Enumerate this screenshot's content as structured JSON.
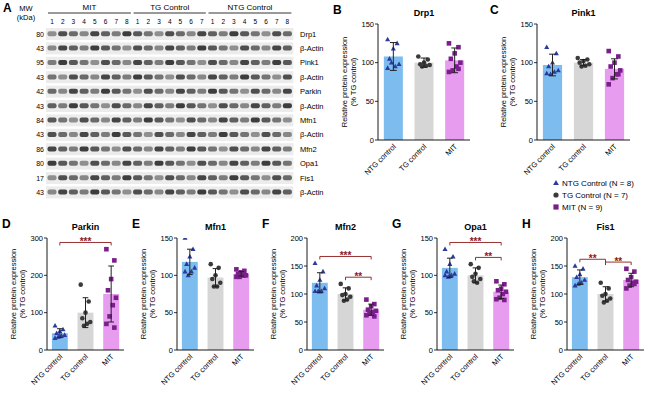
{
  "blot": {
    "panel": "A",
    "mw_label": [
      "MW",
      "(kDa)"
    ],
    "groups": [
      {
        "label": "MIT",
        "lanes": [
          1,
          2,
          3,
          4,
          5,
          6,
          7,
          8
        ]
      },
      {
        "label": "TG Control",
        "lanes": [
          1,
          2,
          3,
          4,
          5,
          6,
          7
        ]
      },
      {
        "label": "NTG Control",
        "lanes": [
          1,
          2,
          3,
          4,
          5,
          6,
          7,
          8
        ]
      }
    ],
    "rows": [
      {
        "mw": 80,
        "label": "Drp1"
      },
      {
        "mw": 43,
        "label": "β-Actin"
      },
      {
        "mw": 95,
        "label": "Pink1"
      },
      {
        "mw": 43,
        "label": "β-Actin"
      },
      {
        "mw": 42,
        "label": "Parkin"
      },
      {
        "mw": 43,
        "label": "β-Actin"
      },
      {
        "mw": 84,
        "label": "Mfn1"
      },
      {
        "mw": 43,
        "label": "β-Actin"
      },
      {
        "mw": 86,
        "label": "Mfn2"
      },
      {
        "mw": 80,
        "label": "Opa1"
      },
      {
        "mw": 17,
        "label": "Fis1"
      },
      {
        "mw": 43,
        "label": "β-Actin"
      }
    ]
  },
  "key": {
    "entries": [
      {
        "label": "NTG Control (N = 8)",
        "marker": "triangle",
        "color": "#2b3a9c"
      },
      {
        "label": "TG Control (N = 7)",
        "marker": "circle",
        "color": "#3a3a3a"
      },
      {
        "label": "MIT (N = 9)",
        "marker": "square",
        "color": "#7a1f8a"
      }
    ]
  },
  "chart_data": [
    {
      "type": "bar",
      "panel": "B",
      "title": "Drp1",
      "y_label": [
        "Relative protein expression",
        "(% TG control)"
      ],
      "categories": [
        "NTG control",
        "TG control",
        "MIT"
      ],
      "values": [
        108,
        100,
        103
      ],
      "errors": [
        18,
        6,
        16
      ],
      "points": [
        [
          130,
          125,
          118,
          105,
          98,
          95,
          100,
          93
        ],
        [
          108,
          104,
          100,
          98,
          97,
          96,
          95
        ],
        [
          125,
          120,
          112,
          105,
          100,
          95,
          90,
          88,
          92
        ]
      ],
      "colors": [
        "#7dbcef",
        "#d6d6d6",
        "#e79cf0"
      ],
      "ylim": [
        0,
        150
      ],
      "yticks": [
        0,
        50,
        100,
        150
      ],
      "significance": []
    },
    {
      "type": "bar",
      "panel": "C",
      "title": "Pink1",
      "y_label": [
        "Relative protein expression",
        "(% TG control)"
      ],
      "categories": [
        "NTG control",
        "TG control",
        "MIT"
      ],
      "values": [
        97,
        100,
        92
      ],
      "errors": [
        14,
        4,
        13
      ],
      "points": [
        [
          120,
          112,
          100,
          95,
          90,
          88,
          85,
          86
        ],
        [
          106,
          104,
          102,
          100,
          98,
          96,
          95
        ],
        [
          115,
          108,
          100,
          95,
          90,
          85,
          80,
          72,
          85
        ]
      ],
      "colors": [
        "#7dbcef",
        "#d6d6d6",
        "#e79cf0"
      ],
      "ylim": [
        0,
        150
      ],
      "yticks": [
        0,
        50,
        100,
        150
      ],
      "significance": []
    },
    {
      "type": "bar",
      "panel": "D",
      "title": "Parkin",
      "y_label": [
        "Relative protein expression",
        "(% TG control)"
      ],
      "categories": [
        "NTG control",
        "TG control",
        "MIT"
      ],
      "values": [
        45,
        100,
        150
      ],
      "errors": [
        12,
        40,
        75
      ],
      "points": [
        [
          65,
          55,
          50,
          45,
          40,
          38,
          35,
          32
        ],
        [
          175,
          130,
          100,
          85,
          75,
          70,
          65
        ],
        [
          270,
          240,
          190,
          160,
          140,
          120,
          90,
          70,
          60
        ]
      ],
      "colors": [
        "#7dbcef",
        "#d6d6d6",
        "#e79cf0"
      ],
      "ylim": [
        0,
        300
      ],
      "yticks": [
        0,
        100,
        200,
        300
      ],
      "significance": [
        {
          "from": 0,
          "to": 2,
          "label": "***"
        }
      ]
    },
    {
      "type": "bar",
      "panel": "E",
      "title": "Mfn1",
      "y_label": [
        "Relative protein expression",
        "(% TG control)"
      ],
      "categories": [
        "NTG control",
        "TG control",
        "MIT"
      ],
      "values": [
        118,
        97,
        102
      ],
      "errors": [
        17,
        12,
        3
      ],
      "points": [
        [
          150,
          135,
          125,
          115,
          110,
          105,
          100,
          105
        ],
        [
          115,
          110,
          100,
          95,
          90,
          85,
          85
        ],
        [
          108,
          106,
          104,
          102,
          100,
          100,
          98,
          98,
          100
        ]
      ],
      "colors": [
        "#7dbcef",
        "#d6d6d6",
        "#e79cf0"
      ],
      "ylim": [
        0,
        150
      ],
      "yticks": [
        0,
        50,
        100,
        150
      ],
      "significance": []
    },
    {
      "type": "bar",
      "panel": "F",
      "title": "Mfn2",
      "y_label": [
        "Relative protein expression",
        "(% TG control)"
      ],
      "categories": [
        "NTG control",
        "TG control",
        "MIT"
      ],
      "values": [
        120,
        100,
        72
      ],
      "errors": [
        18,
        11,
        10
      ],
      "points": [
        [
          155,
          140,
          125,
          115,
          110,
          105,
          105,
          105
        ],
        [
          118,
          110,
          100,
          98,
          95,
          90,
          88
        ],
        [
          90,
          82,
          78,
          72,
          70,
          68,
          65,
          62,
          60
        ]
      ],
      "colors": [
        "#7dbcef",
        "#d6d6d6",
        "#e79cf0"
      ],
      "ylim": [
        0,
        200
      ],
      "yticks": [
        0,
        50,
        100,
        150,
        200
      ],
      "significance": [
        {
          "from": 0,
          "to": 2,
          "label": "***"
        },
        {
          "from": 1,
          "to": 2,
          "label": "**"
        }
      ]
    },
    {
      "type": "bar",
      "panel": "G",
      "title": "Opa1",
      "y_label": [
        "Relative protein expression",
        "(% TG control)"
      ],
      "categories": [
        "NTG control",
        "TG control",
        "MIT"
      ],
      "values": [
        110,
        100,
        78
      ],
      "errors": [
        13,
        10,
        9
      ],
      "points": [
        [
          135,
          125,
          115,
          105,
          102,
          100,
          98,
          100
        ],
        [
          115,
          110,
          102,
          98,
          95,
          90,
          92
        ],
        [
          92,
          88,
          82,
          80,
          78,
          75,
          70,
          68,
          67
        ]
      ],
      "colors": [
        "#7dbcef",
        "#d6d6d6",
        "#e79cf0"
      ],
      "ylim": [
        0,
        150
      ],
      "yticks": [
        0,
        50,
        100,
        150
      ],
      "significance": [
        {
          "from": 0,
          "to": 2,
          "label": "***"
        },
        {
          "from": 1,
          "to": 2,
          "label": "**"
        }
      ]
    },
    {
      "type": "bar",
      "panel": "H",
      "title": "Fis1",
      "y_label": [
        "Relative protein expression",
        "(% TG control)"
      ],
      "categories": [
        "NTG control",
        "TG control",
        "MIT"
      ],
      "values": [
        130,
        100,
        125
      ],
      "errors": [
        13,
        13,
        12
      ],
      "points": [
        [
          150,
          145,
          135,
          130,
          125,
          120,
          118,
          115
        ],
        [
          120,
          110,
          100,
          97,
          92,
          88,
          85
        ],
        [
          145,
          140,
          130,
          125,
          122,
          120,
          115,
          110,
          118
        ]
      ],
      "colors": [
        "#7dbcef",
        "#d6d6d6",
        "#e79cf0"
      ],
      "ylim": [
        0,
        200
      ],
      "yticks": [
        0,
        50,
        100,
        150,
        200
      ],
      "significance": [
        {
          "from": 0,
          "to": 1,
          "label": "**"
        },
        {
          "from": 1,
          "to": 2,
          "label": "**"
        }
      ]
    }
  ]
}
